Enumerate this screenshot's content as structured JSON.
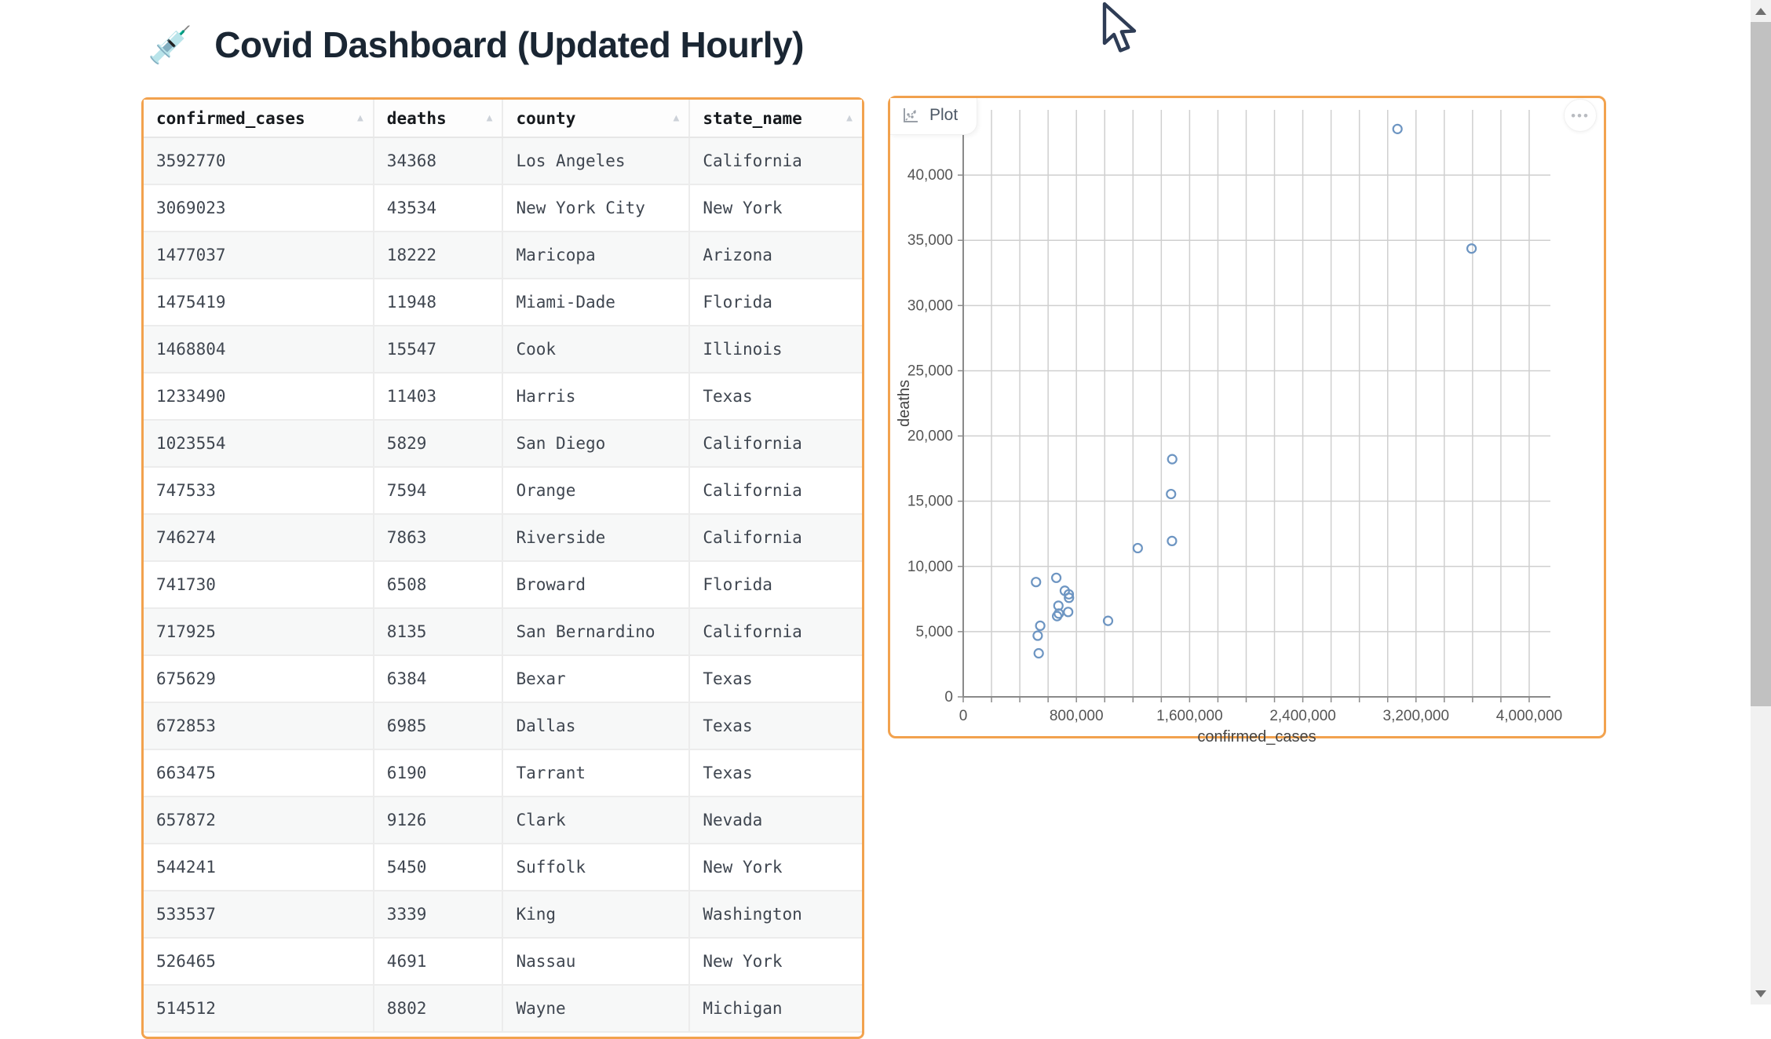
{
  "page": {
    "emoji": "💉",
    "title": "Covid Dashboard (Updated Hourly)"
  },
  "colors": {
    "accent_orange": "#f2a24e",
    "point_blue": "#6d95c2",
    "grid_gray": "#cfcfcf",
    "axis_gray": "#8a8a8a"
  },
  "table": {
    "sort_icon": "▲",
    "columns": [
      {
        "label": "confirmed_cases"
      },
      {
        "label": "deaths"
      },
      {
        "label": "county"
      },
      {
        "label": "state_name"
      }
    ],
    "rows": [
      [
        "3592770",
        "34368",
        "Los Angeles",
        "California"
      ],
      [
        "3069023",
        "43534",
        "New York City",
        "New York"
      ],
      [
        "1477037",
        "18222",
        "Maricopa",
        "Arizona"
      ],
      [
        "1475419",
        "11948",
        "Miami-Dade",
        "Florida"
      ],
      [
        "1468804",
        "15547",
        "Cook",
        "Illinois"
      ],
      [
        "1233490",
        "11403",
        "Harris",
        "Texas"
      ],
      [
        "1023554",
        "5829",
        "San Diego",
        "California"
      ],
      [
        "747533",
        "7594",
        "Orange",
        "California"
      ],
      [
        "746274",
        "7863",
        "Riverside",
        "California"
      ],
      [
        "741730",
        "6508",
        "Broward",
        "Florida"
      ],
      [
        "717925",
        "8135",
        "San Bernardino",
        "California"
      ],
      [
        "675629",
        "6384",
        "Bexar",
        "Texas"
      ],
      [
        "672853",
        "6985",
        "Dallas",
        "Texas"
      ],
      [
        "663475",
        "6190",
        "Tarrant",
        "Texas"
      ],
      [
        "657872",
        "9126",
        "Clark",
        "Nevada"
      ],
      [
        "544241",
        "5450",
        "Suffolk",
        "New York"
      ],
      [
        "533537",
        "3339",
        "King",
        "Washington"
      ],
      [
        "526465",
        "4691",
        "Nassau",
        "New York"
      ],
      [
        "514512",
        "8802",
        "Wayne",
        "Michigan"
      ]
    ]
  },
  "plot": {
    "tab_label": "Plot",
    "menu_label": "•••"
  },
  "chart_data": {
    "type": "scatter",
    "title": "",
    "xlabel": "confirmed_cases",
    "ylabel": "deaths",
    "xlim": [
      0,
      4150000
    ],
    "ylim": [
      0,
      45000
    ],
    "grid": true,
    "legend": "none",
    "marker": "open-circle",
    "x_tick_values": [
      0,
      800000,
      1600000,
      2400000,
      3200000,
      4000000
    ],
    "x_tick_labels": [
      "0",
      "800,000",
      "1,600,000",
      "2,400,000",
      "3,200,000",
      "4,000,000"
    ],
    "x_minor_step": 200000,
    "y_tick_values": [
      0,
      5000,
      10000,
      15000,
      20000,
      25000,
      30000,
      35000,
      40000
    ],
    "y_tick_labels": [
      "0",
      "5,000",
      "10,000",
      "15,000",
      "20,000",
      "25,000",
      "30,000",
      "35,000",
      "40,000"
    ],
    "points": [
      {
        "county": "Los Angeles",
        "state_name": "California",
        "confirmed_cases": 3592770,
        "deaths": 34368
      },
      {
        "county": "New York City",
        "state_name": "New York",
        "confirmed_cases": 3069023,
        "deaths": 43534
      },
      {
        "county": "Maricopa",
        "state_name": "Arizona",
        "confirmed_cases": 1477037,
        "deaths": 18222
      },
      {
        "county": "Miami-Dade",
        "state_name": "Florida",
        "confirmed_cases": 1475419,
        "deaths": 11948
      },
      {
        "county": "Cook",
        "state_name": "Illinois",
        "confirmed_cases": 1468804,
        "deaths": 15547
      },
      {
        "county": "Harris",
        "state_name": "Texas",
        "confirmed_cases": 1233490,
        "deaths": 11403
      },
      {
        "county": "San Diego",
        "state_name": "California",
        "confirmed_cases": 1023554,
        "deaths": 5829
      },
      {
        "county": "Orange",
        "state_name": "California",
        "confirmed_cases": 747533,
        "deaths": 7594
      },
      {
        "county": "Riverside",
        "state_name": "California",
        "confirmed_cases": 746274,
        "deaths": 7863
      },
      {
        "county": "Broward",
        "state_name": "Florida",
        "confirmed_cases": 741730,
        "deaths": 6508
      },
      {
        "county": "San Bernardino",
        "state_name": "California",
        "confirmed_cases": 717925,
        "deaths": 8135
      },
      {
        "county": "Bexar",
        "state_name": "Texas",
        "confirmed_cases": 675629,
        "deaths": 6384
      },
      {
        "county": "Dallas",
        "state_name": "Texas",
        "confirmed_cases": 672853,
        "deaths": 6985
      },
      {
        "county": "Tarrant",
        "state_name": "Texas",
        "confirmed_cases": 663475,
        "deaths": 6190
      },
      {
        "county": "Clark",
        "state_name": "Nevada",
        "confirmed_cases": 657872,
        "deaths": 9126
      },
      {
        "county": "Suffolk",
        "state_name": "New York",
        "confirmed_cases": 544241,
        "deaths": 5450
      },
      {
        "county": "King",
        "state_name": "Washington",
        "confirmed_cases": 533537,
        "deaths": 3339
      },
      {
        "county": "Nassau",
        "state_name": "New York",
        "confirmed_cases": 526465,
        "deaths": 4691
      },
      {
        "county": "Wayne",
        "state_name": "Michigan",
        "confirmed_cases": 514512,
        "deaths": 8802
      }
    ]
  }
}
